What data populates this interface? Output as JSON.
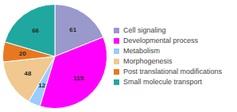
{
  "chart_data": {
    "type": "pie",
    "categories": [
      "Cell signaling",
      "Developmental process",
      "Metabolism",
      "Morphogenesis",
      "Post translational modifications",
      "Small molecule transport"
    ],
    "values": [
      61,
      115,
      12,
      48,
      20,
      66
    ],
    "colors": [
      "#9999cc",
      "#ff00ff",
      "#99ccff",
      "#f0c890",
      "#e87820",
      "#20a8a0"
    ],
    "data_labels": true,
    "legend": "right"
  }
}
